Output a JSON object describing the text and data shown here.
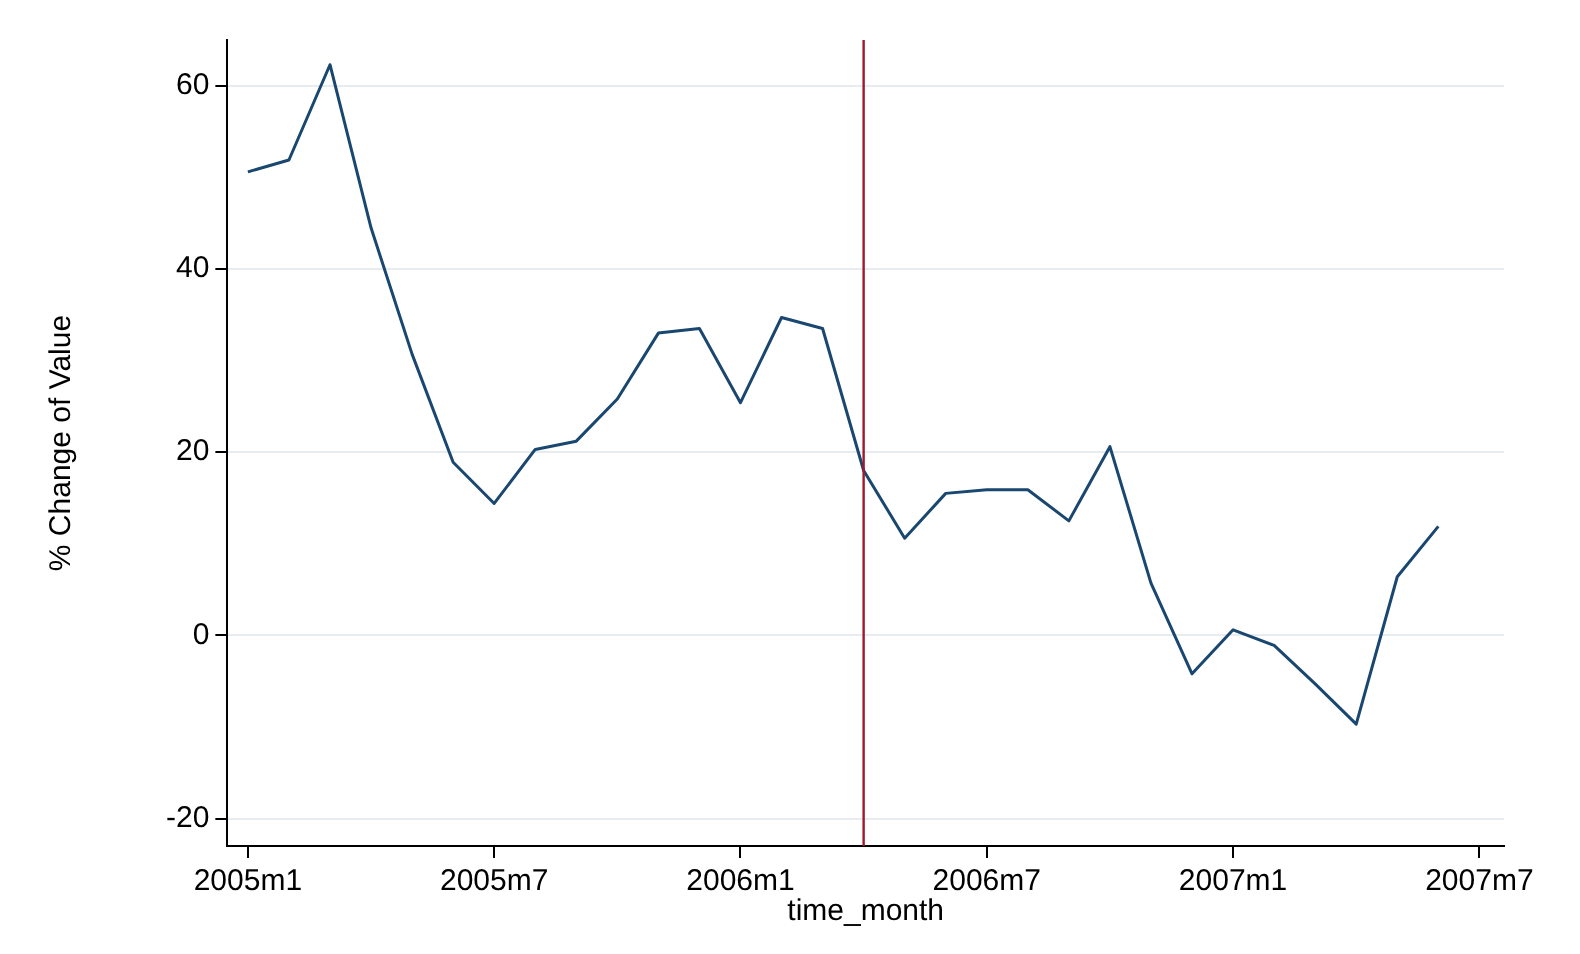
{
  "chart_data": {
    "type": "line",
    "xlabel": "time_month",
    "ylabel": "% Change of Value",
    "x": [
      "2005-01",
      "2005-02",
      "2005-03",
      "2005-04",
      "2005-05",
      "2005-06",
      "2005-07",
      "2005-08",
      "2005-09",
      "2005-10",
      "2005-11",
      "2005-12",
      "2006-01",
      "2006-02",
      "2006-03",
      "2006-04",
      "2006-05",
      "2006-06",
      "2006-07",
      "2006-08",
      "2006-09",
      "2006-10",
      "2006-11",
      "2006-12",
      "2007-01",
      "2007-02",
      "2007-03",
      "2007-04",
      "2007-05",
      "2007-06"
    ],
    "series": [
      {
        "color": "#1a476f",
        "values": [
          50.6,
          51.9,
          62.3,
          44.5,
          30.7,
          18.9,
          14.4,
          20.3,
          21.2,
          25.8,
          33.0,
          33.5,
          25.4,
          34.7,
          33.5,
          18.0,
          10.6,
          15.5,
          15.9,
          15.9,
          12.5,
          20.6,
          5.7,
          -4.2,
          0.6,
          -1.1,
          -5.3,
          -9.7,
          6.4,
          11.9
        ]
      }
    ],
    "xlim": [
      "2004-12-16",
      "2007-07-19"
    ],
    "xticks": [
      {
        "value": "2005-01",
        "label": "2005m1"
      },
      {
        "value": "2005-07",
        "label": "2005m7"
      },
      {
        "value": "2006-01",
        "label": "2006m1"
      },
      {
        "value": "2006-07",
        "label": "2006m7"
      },
      {
        "value": "2007-01",
        "label": "2007m1"
      },
      {
        "value": "2007-07",
        "label": "2007m7"
      }
    ],
    "ylim": [
      -23,
      65
    ],
    "yticks": [
      -20,
      0,
      20,
      40,
      60
    ],
    "ref_lines": [
      {
        "axis": "x",
        "value": "2006-04",
        "color": "#a0182c"
      }
    ],
    "grid": "y",
    "legend": false,
    "marker": "none",
    "line_style": "solid"
  }
}
